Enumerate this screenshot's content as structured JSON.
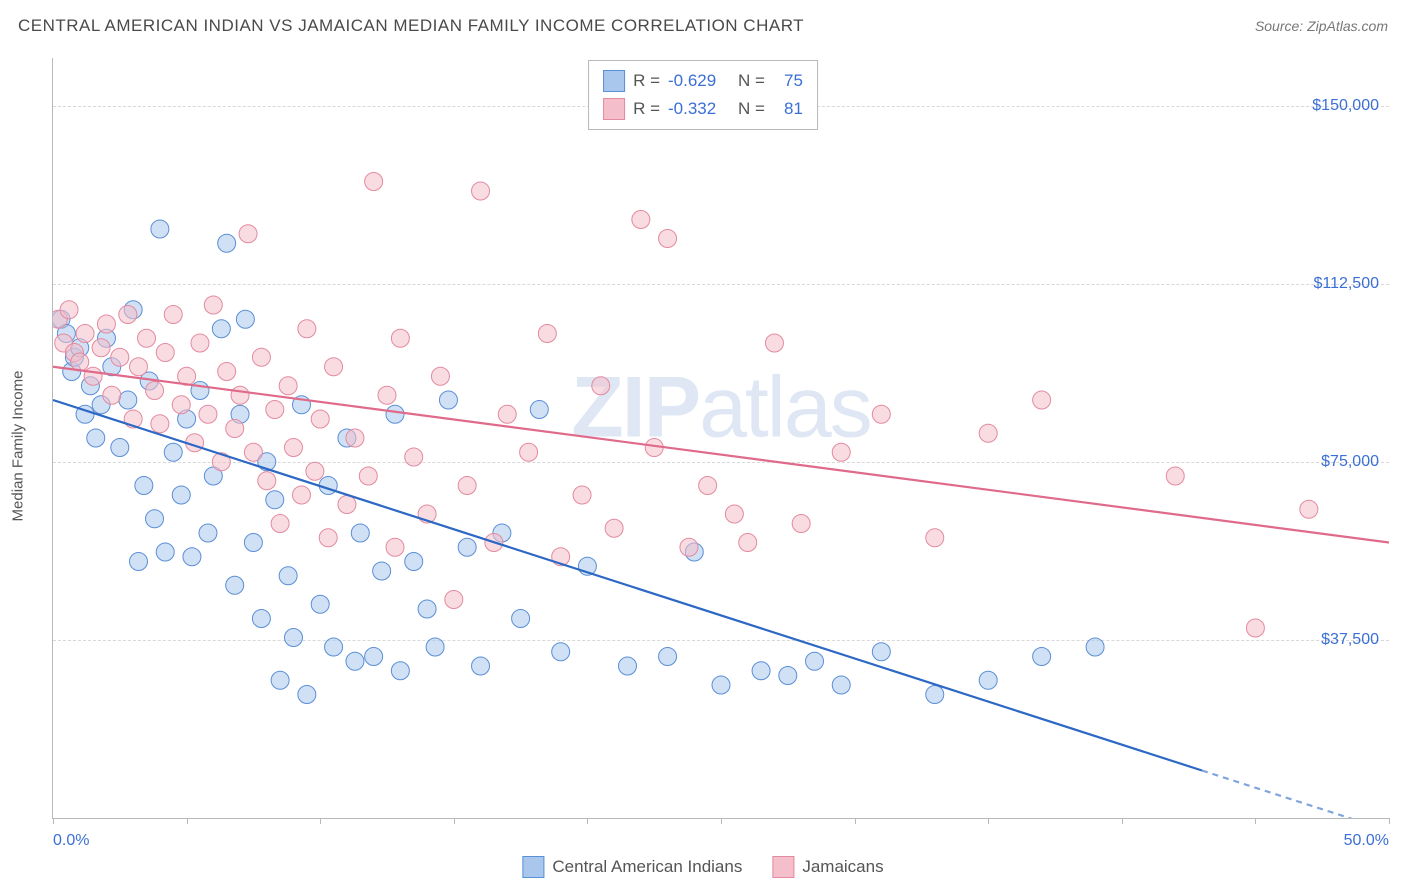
{
  "header": {
    "title": "CENTRAL AMERICAN INDIAN VS JAMAICAN MEDIAN FAMILY INCOME CORRELATION CHART",
    "source_prefix": "Source: ",
    "source": "ZipAtlas.com"
  },
  "watermark": {
    "zip": "ZIP",
    "atlas": "atlas"
  },
  "chart": {
    "type": "scatter",
    "ylabel": "Median Family Income",
    "background_color": "#ffffff",
    "grid_color": "#d8d8d8",
    "axis_color": "#b8b8b8",
    "label_color": "#3b6fd6",
    "text_color": "#555555",
    "xlim": [
      0,
      50
    ],
    "ylim": [
      0,
      160000
    ],
    "xtick_positions": [
      0,
      5,
      10,
      15,
      20,
      25,
      30,
      35,
      40,
      45,
      50
    ],
    "xtick_labels": {
      "0": "0.0%",
      "50": "50.0%"
    },
    "ytick_positions": [
      37500,
      75000,
      112500,
      150000
    ],
    "ytick_labels": [
      "$37,500",
      "$75,000",
      "$112,500",
      "$150,000"
    ],
    "marker_radius": 9,
    "marker_opacity": 0.55,
    "line_width": 2.2,
    "series": [
      {
        "name": "Central American Indians",
        "fill_color": "#a9c7ec",
        "stroke_color": "#5b8fd6",
        "line_color": "#2c68c4",
        "R": "-0.629",
        "N": "75",
        "trend": {
          "x1": 0,
          "y1": 88000,
          "x2": 43,
          "y2": 10000,
          "dash_extend_to_x": 50
        },
        "points": [
          [
            0.3,
            105000
          ],
          [
            0.5,
            102000
          ],
          [
            0.7,
            94000
          ],
          [
            0.8,
            97000
          ],
          [
            1.0,
            99000
          ],
          [
            1.2,
            85000
          ],
          [
            1.4,
            91000
          ],
          [
            1.6,
            80000
          ],
          [
            1.8,
            87000
          ],
          [
            2.0,
            101000
          ],
          [
            2.2,
            95000
          ],
          [
            2.5,
            78000
          ],
          [
            2.8,
            88000
          ],
          [
            3.0,
            107000
          ],
          [
            3.2,
            54000
          ],
          [
            3.4,
            70000
          ],
          [
            3.6,
            92000
          ],
          [
            3.8,
            63000
          ],
          [
            4.0,
            124000
          ],
          [
            4.2,
            56000
          ],
          [
            4.5,
            77000
          ],
          [
            4.8,
            68000
          ],
          [
            5.0,
            84000
          ],
          [
            5.2,
            55000
          ],
          [
            5.5,
            90000
          ],
          [
            5.8,
            60000
          ],
          [
            6.0,
            72000
          ],
          [
            6.3,
            103000
          ],
          [
            6.5,
            121000
          ],
          [
            6.8,
            49000
          ],
          [
            7.0,
            85000
          ],
          [
            7.2,
            105000
          ],
          [
            7.5,
            58000
          ],
          [
            7.8,
            42000
          ],
          [
            8.0,
            75000
          ],
          [
            8.3,
            67000
          ],
          [
            8.5,
            29000
          ],
          [
            8.8,
            51000
          ],
          [
            9.0,
            38000
          ],
          [
            9.3,
            87000
          ],
          [
            9.5,
            26000
          ],
          [
            10.0,
            45000
          ],
          [
            10.3,
            70000
          ],
          [
            10.5,
            36000
          ],
          [
            11.0,
            80000
          ],
          [
            11.3,
            33000
          ],
          [
            11.5,
            60000
          ],
          [
            12.0,
            34000
          ],
          [
            12.3,
            52000
          ],
          [
            12.8,
            85000
          ],
          [
            13.0,
            31000
          ],
          [
            13.5,
            54000
          ],
          [
            14.0,
            44000
          ],
          [
            14.3,
            36000
          ],
          [
            14.8,
            88000
          ],
          [
            15.5,
            57000
          ],
          [
            16.0,
            32000
          ],
          [
            16.8,
            60000
          ],
          [
            17.5,
            42000
          ],
          [
            18.2,
            86000
          ],
          [
            19.0,
            35000
          ],
          [
            20.0,
            53000
          ],
          [
            21.5,
            32000
          ],
          [
            23.0,
            34000
          ],
          [
            24.0,
            56000
          ],
          [
            25.0,
            28000
          ],
          [
            26.5,
            31000
          ],
          [
            27.5,
            30000
          ],
          [
            28.5,
            33000
          ],
          [
            29.5,
            28000
          ],
          [
            31.0,
            35000
          ],
          [
            33.0,
            26000
          ],
          [
            35.0,
            29000
          ],
          [
            37.0,
            34000
          ],
          [
            39.0,
            36000
          ]
        ]
      },
      {
        "name": "Jamaicans",
        "fill_color": "#f4bfca",
        "stroke_color": "#e38aa0",
        "line_color": "#e06a8a",
        "R": "-0.332",
        "N": "81",
        "trend": {
          "x1": 0,
          "y1": 95000,
          "x2": 50,
          "y2": 58000
        },
        "points": [
          [
            0.2,
            105000
          ],
          [
            0.4,
            100000
          ],
          [
            0.6,
            107000
          ],
          [
            0.8,
            98000
          ],
          [
            1.0,
            96000
          ],
          [
            1.2,
            102000
          ],
          [
            1.5,
            93000
          ],
          [
            1.8,
            99000
          ],
          [
            2.0,
            104000
          ],
          [
            2.2,
            89000
          ],
          [
            2.5,
            97000
          ],
          [
            2.8,
            106000
          ],
          [
            3.0,
            84000
          ],
          [
            3.2,
            95000
          ],
          [
            3.5,
            101000
          ],
          [
            3.8,
            90000
          ],
          [
            4.0,
            83000
          ],
          [
            4.2,
            98000
          ],
          [
            4.5,
            106000
          ],
          [
            4.8,
            87000
          ],
          [
            5.0,
            93000
          ],
          [
            5.3,
            79000
          ],
          [
            5.5,
            100000
          ],
          [
            5.8,
            85000
          ],
          [
            6.0,
            108000
          ],
          [
            6.3,
            75000
          ],
          [
            6.5,
            94000
          ],
          [
            6.8,
            82000
          ],
          [
            7.0,
            89000
          ],
          [
            7.3,
            123000
          ],
          [
            7.5,
            77000
          ],
          [
            7.8,
            97000
          ],
          [
            8.0,
            71000
          ],
          [
            8.3,
            86000
          ],
          [
            8.5,
            62000
          ],
          [
            8.8,
            91000
          ],
          [
            9.0,
            78000
          ],
          [
            9.3,
            68000
          ],
          [
            9.5,
            103000
          ],
          [
            9.8,
            73000
          ],
          [
            10.0,
            84000
          ],
          [
            10.3,
            59000
          ],
          [
            10.5,
            95000
          ],
          [
            11.0,
            66000
          ],
          [
            11.3,
            80000
          ],
          [
            11.8,
            72000
          ],
          [
            12.0,
            134000
          ],
          [
            12.5,
            89000
          ],
          [
            12.8,
            57000
          ],
          [
            13.0,
            101000
          ],
          [
            13.5,
            76000
          ],
          [
            14.0,
            64000
          ],
          [
            14.5,
            93000
          ],
          [
            15.0,
            46000
          ],
          [
            15.5,
            70000
          ],
          [
            16.0,
            132000
          ],
          [
            16.5,
            58000
          ],
          [
            17.0,
            85000
          ],
          [
            17.8,
            77000
          ],
          [
            18.5,
            102000
          ],
          [
            19.0,
            55000
          ],
          [
            19.8,
            68000
          ],
          [
            20.5,
            91000
          ],
          [
            21.0,
            61000
          ],
          [
            22.0,
            126000
          ],
          [
            22.5,
            78000
          ],
          [
            23.0,
            122000
          ],
          [
            23.8,
            57000
          ],
          [
            24.5,
            70000
          ],
          [
            25.5,
            64000
          ],
          [
            26.0,
            58000
          ],
          [
            27.0,
            100000
          ],
          [
            28.0,
            62000
          ],
          [
            29.5,
            77000
          ],
          [
            31.0,
            85000
          ],
          [
            33.0,
            59000
          ],
          [
            35.0,
            81000
          ],
          [
            37.0,
            88000
          ],
          [
            42.0,
            72000
          ],
          [
            45.0,
            40000
          ],
          [
            47.0,
            65000
          ]
        ]
      }
    ]
  },
  "legend": {
    "R_label": "R =",
    "N_label": "N ="
  }
}
